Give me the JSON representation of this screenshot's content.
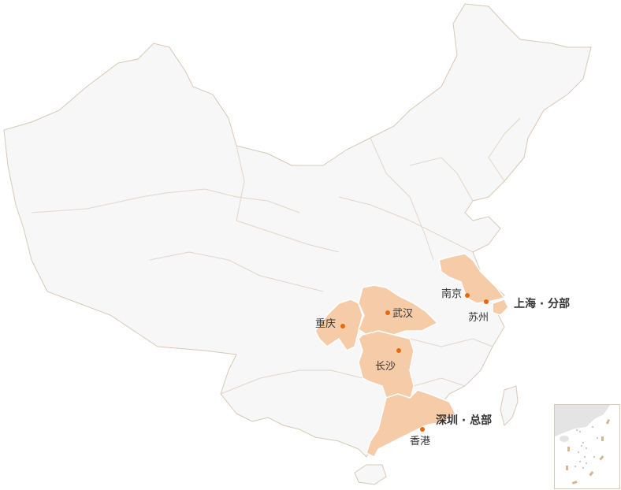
{
  "colors": {
    "land": "#f7f7f7",
    "border": "#d8c8b6",
    "highlight": "#f5cba8",
    "marker": "#e8690c",
    "text": "#333333"
  },
  "cities": [
    {
      "name": "南京"
    },
    {
      "name": "苏州"
    },
    {
      "name": "重庆"
    },
    {
      "name": "武汉"
    },
    {
      "name": "长沙"
    },
    {
      "name": "香港"
    }
  ],
  "offices": [
    {
      "name": "上海 · 分部"
    },
    {
      "name": "深圳 · 总部"
    }
  ],
  "highlighted_regions": [
    "Jiangsu",
    "Shanghai",
    "Chongqing",
    "Hubei",
    "Hunan",
    "Guangdong"
  ]
}
